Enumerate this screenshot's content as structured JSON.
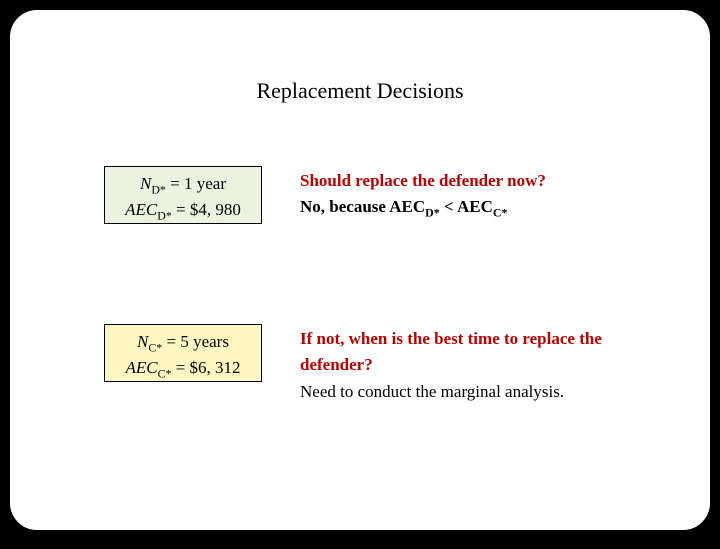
{
  "colors": {
    "slide_bg": "#ffffff",
    "page_bg": "#000000",
    "border": "#000000",
    "green_box_bg": "#e8f4e0",
    "yellow_box_bg": "#fff7c2",
    "question_text": "#c00000",
    "body_text": "#000000"
  },
  "title": "Replacement Decisions",
  "defender_box": {
    "n_label": "N",
    "n_sub": "D*",
    "n_value": " = 1 year",
    "aec_label": "AEC",
    "aec_sub": "D*",
    "aec_value": " = $4, 980"
  },
  "challenger_box": {
    "n_label": "N",
    "n_sub": "C*",
    "n_value": " = 5 years",
    "aec_label": "AEC",
    "aec_sub": "C*",
    "aec_value": " = $6, 312"
  },
  "q1": {
    "question": "Should replace the defender now?",
    "answer_prefix": "No, because AEC",
    "answer_sub1": "D*",
    "answer_mid": " < AEC",
    "answer_sub2": "C*"
  },
  "q2": {
    "question": "If not, when is the best time to replace the defender?",
    "answer": "Need to conduct the marginal analysis."
  }
}
